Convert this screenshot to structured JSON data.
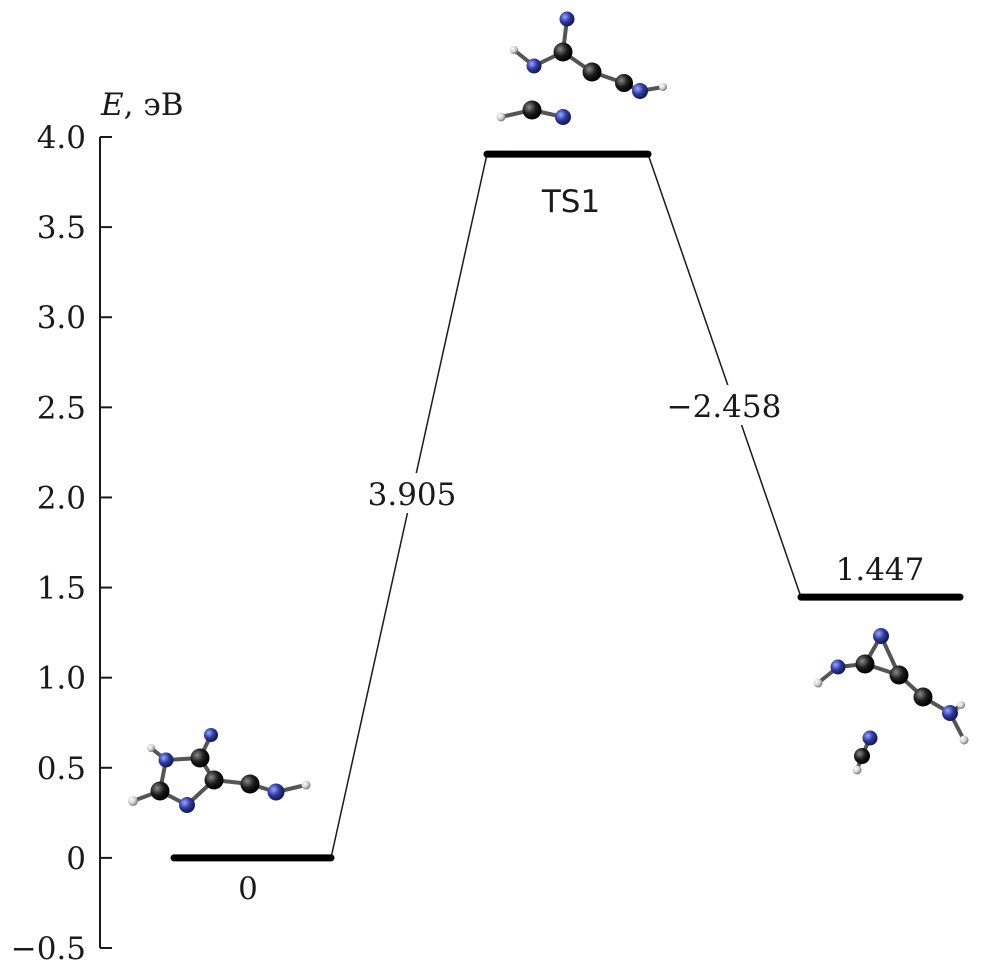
{
  "chart_data": {
    "type": "line",
    "title": "",
    "xlabel": "",
    "ylabel": "E, эВ",
    "ylabel_parts": {
      "symbol": "E",
      "unit": ", эВ"
    },
    "ylim": [
      -0.5,
      4.0
    ],
    "yticks": [
      4.0,
      3.5,
      3.0,
      2.5,
      2.0,
      1.5,
      1.0,
      0.5,
      0,
      -0.5
    ],
    "ytick_labels": [
      "4.0",
      "3.5",
      "3.0",
      "2.5",
      "2.0",
      "1.5",
      "1.0",
      "0.5",
      "0",
      "−0.5"
    ],
    "grid": false,
    "levels": [
      {
        "name": "0",
        "energy": 0
      },
      {
        "name": "TS1",
        "energy": 3.905
      },
      {
        "name": "1.447",
        "energy": 1.447
      }
    ],
    "transitions": [
      {
        "label": "3.905",
        "delta": 3.905
      },
      {
        "label": "−2.458",
        "delta": -2.458
      }
    ]
  },
  "colors": {
    "text": "#1a1a1a",
    "axis": "#1a1a1a",
    "carbon": "#1c1c1c",
    "nitrogen": "#2d3a9a",
    "hydrogen": "#d8d8d8"
  },
  "icons": [
    "molecule-reactant-icon",
    "molecule-ts1-icon",
    "molecule-product-icon"
  ]
}
